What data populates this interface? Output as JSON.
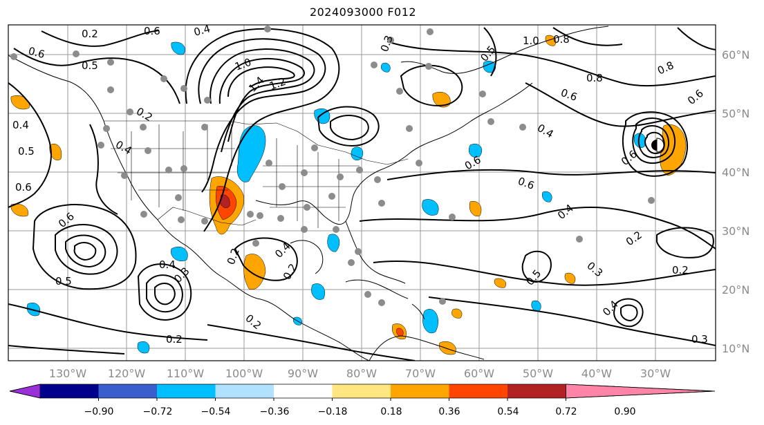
{
  "title": "2024093000 F012",
  "lat_labels": [
    "60°N",
    "50°N",
    "40°N",
    "30°N",
    "20°N",
    "10°N"
  ],
  "lon_labels": [
    "130°W",
    "120°W",
    "110°W",
    "100°W",
    "90°W",
    "80°W",
    "70°W",
    "60°W",
    "50°W",
    "40°W",
    "30°W"
  ],
  "colorbar": {
    "colors": [
      "#9b30d9",
      "#00008b",
      "#3a5fcd",
      "#00bfff",
      "#b0e2ff",
      "#ffffff",
      "#ffe680",
      "#ffa500",
      "#ff4500",
      "#b22222",
      "#ff85a8"
    ],
    "ticks": [
      "−0.90",
      "−0.72",
      "−0.54",
      "−0.36",
      "−0.18",
      "0.18",
      "0.36",
      "0.54",
      "0.72",
      "0.90"
    ]
  },
  "contour_labels": [
    "0.2",
    "0.6",
    "0.5",
    "0.4",
    "0.6",
    "0.6",
    "0.5",
    "0.4",
    "0.6",
    "1.0",
    "1.4",
    "1.2",
    "0.2",
    "0.4",
    "0.3",
    "1.0",
    "0.8",
    "0.8",
    "0.8",
    "0.6",
    "0.6",
    "0.4",
    "0.6",
    "0.5",
    "0.6",
    "0.6",
    "0.4",
    "0.2",
    "0.4",
    "0.2",
    "0.3",
    "0.5",
    "0.2",
    "0.3",
    "0.2",
    "0.5",
    "0.4",
    "0.3",
    "0.2",
    "0.4",
    "0.2"
  ]
}
